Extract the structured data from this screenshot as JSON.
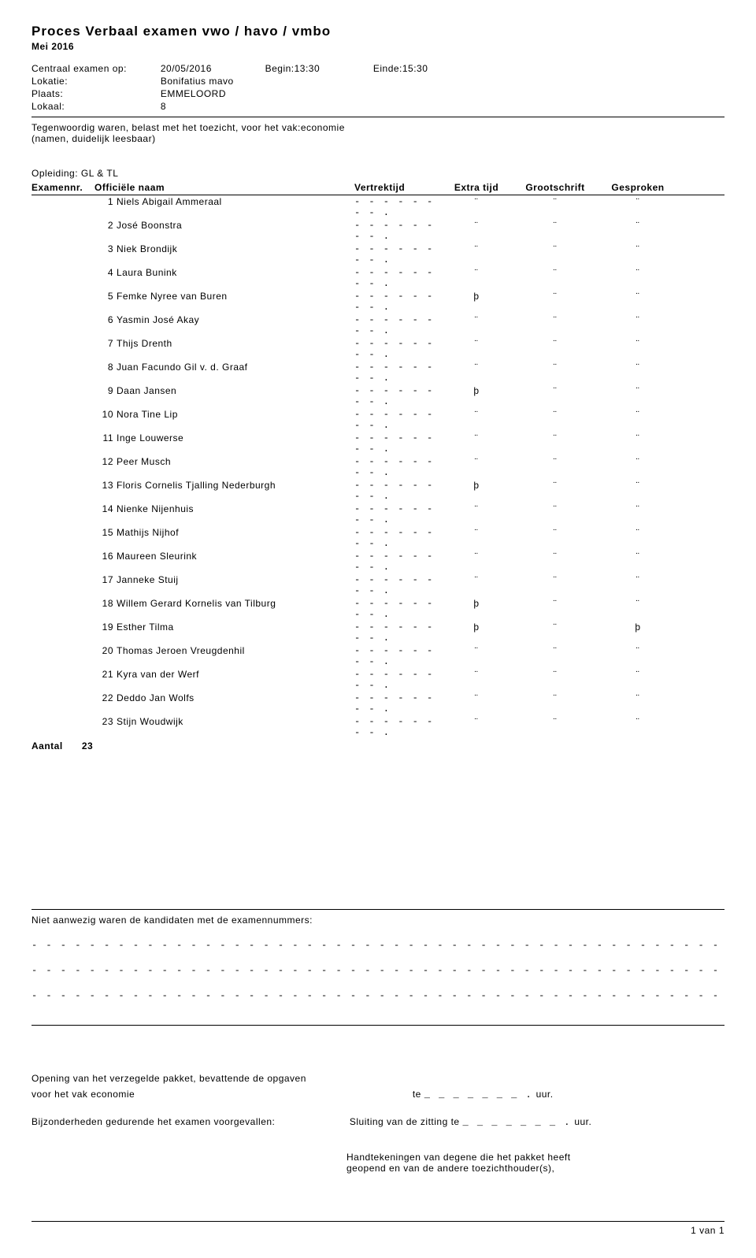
{
  "title": "Proces Verbaal examen vwo / havo / vmbo",
  "period": "Mei 2016",
  "exam_date_label": "Centraal examen op:",
  "exam_date": "20/05/2016",
  "begin_label": "Begin:",
  "begin_time": "13:30",
  "end_label": "Einde:",
  "end_time": "15:30",
  "lokatie_label": "Lokatie:",
  "lokatie": "Bonifatius mavo",
  "plaats_label": "Plaats:",
  "plaats": "EMMELOORD",
  "lokaal_label": "Lokaal:",
  "lokaal": "8",
  "supervision_line": "Tegenwoordig waren, belast met het toezicht, voor het vak:economie",
  "supervision_sub": "(namen, duidelijk leesbaar)",
  "opleiding_label": "Opleiding:",
  "opleiding": "GL & TL",
  "col_examnr": "Examennr.",
  "col_name": "Officiële naam",
  "col_vertrek": "Vertrektijd",
  "col_extra": "Extra tijd",
  "col_groot": "Grootschrift",
  "col_gespr": "Gesproken",
  "dash_cell": "- - - - - - - - .",
  "empty_mark": "¨",
  "check_mark": "þ",
  "students": [
    {
      "n": "1",
      "name": "Niels Abigail Ammeraal",
      "extra": "¨",
      "groot": "¨",
      "gespr": "¨"
    },
    {
      "n": "2",
      "name": "José Boonstra",
      "extra": "¨",
      "groot": "¨",
      "gespr": "¨"
    },
    {
      "n": "3",
      "name": "Niek Brondijk",
      "extra": "¨",
      "groot": "¨",
      "gespr": "¨"
    },
    {
      "n": "4",
      "name": "Laura Bunink",
      "extra": "¨",
      "groot": "¨",
      "gespr": "¨"
    },
    {
      "n": "5",
      "name": "Femke Nyree van Buren",
      "extra": "þ",
      "groot": "¨",
      "gespr": "¨"
    },
    {
      "n": "6",
      "name": "Yasmin José Akay",
      "extra": "¨",
      "groot": "¨",
      "gespr": "¨"
    },
    {
      "n": "7",
      "name": "Thijs Drenth",
      "extra": "¨",
      "groot": "¨",
      "gespr": "¨"
    },
    {
      "n": "8",
      "name": "Juan Facundo Gil v. d. Graaf",
      "extra": "¨",
      "groot": "¨",
      "gespr": "¨"
    },
    {
      "n": "9",
      "name": "Daan Jansen",
      "extra": "þ",
      "groot": "¨",
      "gespr": "¨"
    },
    {
      "n": "10",
      "name": "Nora Tine Lip",
      "extra": "¨",
      "groot": "¨",
      "gespr": "¨"
    },
    {
      "n": "11",
      "name": "Inge Louwerse",
      "extra": "¨",
      "groot": "¨",
      "gespr": "¨"
    },
    {
      "n": "12",
      "name": "Peer Musch",
      "extra": "¨",
      "groot": "¨",
      "gespr": "¨"
    },
    {
      "n": "13",
      "name": "Floris Cornelis Tjalling Nederburgh",
      "extra": "þ",
      "groot": "¨",
      "gespr": "¨"
    },
    {
      "n": "14",
      "name": "Nienke Nijenhuis",
      "extra": "¨",
      "groot": "¨",
      "gespr": "¨"
    },
    {
      "n": "15",
      "name": "Mathijs Nijhof",
      "extra": "¨",
      "groot": "¨",
      "gespr": "¨"
    },
    {
      "n": "16",
      "name": "Maureen Sleurink",
      "extra": "¨",
      "groot": "¨",
      "gespr": "¨"
    },
    {
      "n": "17",
      "name": "Janneke Stuij",
      "extra": "¨",
      "groot": "¨",
      "gespr": "¨"
    },
    {
      "n": "18",
      "name": "Willem Gerard Kornelis van Tilburg",
      "extra": "þ",
      "groot": "¨",
      "gespr": "¨"
    },
    {
      "n": "19",
      "name": "Esther Tilma",
      "extra": "þ",
      "groot": "¨",
      "gespr": "þ"
    },
    {
      "n": "20",
      "name": "Thomas Jeroen Vreugdenhil",
      "extra": "¨",
      "groot": "¨",
      "gespr": "¨"
    },
    {
      "n": "21",
      "name": "Kyra van der Werf",
      "extra": "¨",
      "groot": "¨",
      "gespr": "¨"
    },
    {
      "n": "22",
      "name": "Deddo Jan Wolfs",
      "extra": "¨",
      "groot": "¨",
      "gespr": "¨"
    },
    {
      "n": "23",
      "name": "Stijn Woudwijk",
      "extra": "¨",
      "groot": "¨",
      "gespr": "¨"
    }
  ],
  "aantal_label": "Aantal",
  "aantal": "23",
  "absent_label": "Niet aanwezig waren de kandidaten met de examennummers:",
  "long_dash": "- - - - - - - - - - - - - - - - - - - - - - - - - - - - - - - - - - - - - - - - - - - - - - - - - - - - - - - - - - - - - - .",
  "opening_line1": "Opening van het verzegelde pakket, bevattende de opgaven",
  "opening_line2_pre": "voor het vak economie",
  "opening_line2_te": "te",
  "opening_field": "_ _ _ _ _ _ _ .",
  "opening_uur": "uur.",
  "bijz_label": "Bijzonderheden gedurende het examen voorgevallen:",
  "sluiting_pre": "Sluiting van de zitting te",
  "sluiting_field": "_ _ _ _ _ _ _ .",
  "sluiting_uur": "uur.",
  "handtek1": "Handtekeningen van degene die het pakket heeft",
  "handtek2": "geopend en van de andere toezichthouder(s),",
  "page_footer": "1 van 1"
}
